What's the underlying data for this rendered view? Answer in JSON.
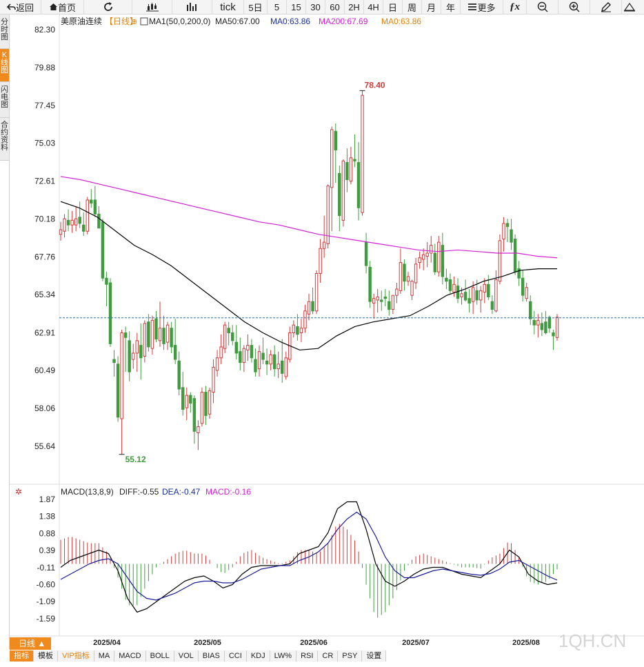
{
  "toolbar": {
    "back": "返回",
    "home": "首页",
    "tick": "tick",
    "periods": [
      "5日",
      "5",
      "15",
      "30",
      "60",
      "2H",
      "4H",
      "日",
      "周",
      "月",
      "年"
    ],
    "more": "更多"
  },
  "side_tabs": [
    "分时图",
    "K线图",
    "闪电图",
    "合约资料"
  ],
  "legend": {
    "name": "美原油连续",
    "period": "【日线】",
    "ma1": "MA1(50,0,200,0)",
    "ma50": "MA50:67.00",
    "ma": "MA0:63.86",
    "ma200": "MA200:67.69",
    "ma0": "MA0:63.86"
  },
  "macd_legend": {
    "name": "MACD(13,8,9)",
    "diff": "DIFF:-0.55",
    "dea": "DEA:-0.47",
    "macd": "MACD:-0.16"
  },
  "colors": {
    "up": "#d23a3a",
    "down": "#3e9c3e",
    "ma200": "#d020d0",
    "ma50": "#000000",
    "last": "#2a6fb0",
    "diff": "#000000",
    "dea": "#1a1a9a"
  },
  "chart_data": {
    "type": "candlestick",
    "price_axis": [
      "82.30",
      "79.88",
      "77.45",
      "75.03",
      "72.61",
      "70.18",
      "67.76",
      "65.34",
      "62.91",
      "60.49",
      "58.06",
      "55.64"
    ],
    "macd_axis": [
      "1.87",
      "1.38",
      "0.88",
      "0.39",
      "-0.11",
      "-0.60",
      "-1.09",
      "-1.59"
    ],
    "x_labels": [
      "2025/04",
      "2025/05",
      "2025/06",
      "2025/07",
      "2025/08"
    ],
    "annotations": {
      "high": "78.40",
      "low": "55.12"
    },
    "last_price": 63.86,
    "candles": [
      [
        69.2,
        70.0,
        68.8,
        69.5
      ],
      [
        69.4,
        70.5,
        69.0,
        70.2
      ],
      [
        70.1,
        70.8,
        69.4,
        69.8
      ],
      [
        69.8,
        70.7,
        69.3,
        70.1
      ],
      [
        69.8,
        71.0,
        69.4,
        70.2
      ],
      [
        70.3,
        71.3,
        69.6,
        69.9
      ],
      [
        69.8,
        70.6,
        69.1,
        69.4
      ],
      [
        69.4,
        71.6,
        69.2,
        71.4
      ],
      [
        71.4,
        72.1,
        70.9,
        71.2
      ],
      [
        71.4,
        72.3,
        70.3,
        70.5
      ],
      [
        70.5,
        71.0,
        69.8,
        69.6
      ],
      [
        70.0,
        70.2,
        66.2,
        66.4
      ],
      [
        66.4,
        66.8,
        64.6,
        66.0
      ],
      [
        66.1,
        66.4,
        62.0,
        62.2
      ],
      [
        61.2,
        61.8,
        60.1,
        61.0
      ],
      [
        60.9,
        61.4,
        57.2,
        57.5
      ],
      [
        57.4,
        63.1,
        55.12,
        62.9
      ],
      [
        62.9,
        63.3,
        60.4,
        62.6
      ],
      [
        62.4,
        63.0,
        59.8,
        60.4
      ],
      [
        61.2,
        62.2,
        60.6,
        61.6
      ],
      [
        61.6,
        62.9,
        60.4,
        62.4
      ],
      [
        62.1,
        63.5,
        59.9,
        61.3
      ],
      [
        61.4,
        63.7,
        61.0,
        63.5
      ],
      [
        63.6,
        64.1,
        61.7,
        62.0
      ],
      [
        61.9,
        64.0,
        61.5,
        63.7
      ],
      [
        63.8,
        64.3,
        62.3,
        62.5
      ],
      [
        62.4,
        64.9,
        62.0,
        63.2
      ],
      [
        63.2,
        64.0,
        61.8,
        62.2
      ],
      [
        62.3,
        63.6,
        61.8,
        63.4
      ],
      [
        63.2,
        63.6,
        61.6,
        62.0
      ],
      [
        62.1,
        63.8,
        60.9,
        61.2
      ],
      [
        61.1,
        61.7,
        58.9,
        59.3
      ],
      [
        59.4,
        60.4,
        57.6,
        58.0
      ],
      [
        58.1,
        59.4,
        57.3,
        58.9
      ],
      [
        58.9,
        59.1,
        57.8,
        58.4
      ],
      [
        58.7,
        58.9,
        55.8,
        56.6
      ],
      [
        56.5,
        57.3,
        55.4,
        56.9
      ],
      [
        57.1,
        59.4,
        56.9,
        59.1
      ],
      [
        59.1,
        59.5,
        57.0,
        57.6
      ],
      [
        57.7,
        59.4,
        57.4,
        59.2
      ],
      [
        59.1,
        61.2,
        58.4,
        60.7
      ],
      [
        60.5,
        61.8,
        60.1,
        61.3
      ],
      [
        61.3,
        62.8,
        60.9,
        62.0
      ],
      [
        61.9,
        63.6,
        61.6,
        63.4
      ],
      [
        63.2,
        63.6,
        62.1,
        62.9
      ],
      [
        62.9,
        63.4,
        62.1,
        62.4
      ],
      [
        62.3,
        63.4,
        61.2,
        61.6
      ],
      [
        61.7,
        62.6,
        60.5,
        61.0
      ],
      [
        61.0,
        62.1,
        60.4,
        61.9
      ],
      [
        61.8,
        62.8,
        61.1,
        62.1
      ],
      [
        62.1,
        62.5,
        61.0,
        61.3
      ],
      [
        61.2,
        61.9,
        60.1,
        60.4
      ],
      [
        60.6,
        62.1,
        60.1,
        61.7
      ],
      [
        61.6,
        62.6,
        60.9,
        61.2
      ],
      [
        61.1,
        61.9,
        60.2,
        60.9
      ],
      [
        60.9,
        61.8,
        60.5,
        61.5
      ],
      [
        61.5,
        62.1,
        60.1,
        60.6
      ],
      [
        60.6,
        61.7,
        60.0,
        60.9
      ],
      [
        61.1,
        62.5,
        59.7,
        60.3
      ],
      [
        60.1,
        61.7,
        59.9,
        61.3
      ],
      [
        61.2,
        63.3,
        61.0,
        62.9
      ],
      [
        62.9,
        63.7,
        62.6,
        63.4
      ],
      [
        63.3,
        64.1,
        62.4,
        62.8
      ],
      [
        62.9,
        63.8,
        62.3,
        63.2
      ],
      [
        63.2,
        64.7,
        62.9,
        64.3
      ],
      [
        64.1,
        65.4,
        63.7,
        64.9
      ],
      [
        64.9,
        65.8,
        64.1,
        64.3
      ],
      [
        64.3,
        66.9,
        64.1,
        66.7
      ],
      [
        66.7,
        68.9,
        66.1,
        68.3
      ],
      [
        68.3,
        70.4,
        67.7,
        68.7
      ],
      [
        68.6,
        72.4,
        68.3,
        72.3
      ],
      [
        72.2,
        76.1,
        69.4,
        75.9
      ],
      [
        75.8,
        76.3,
        72.5,
        74.6
      ],
      [
        73.1,
        73.6,
        69.4,
        70.4
      ],
      [
        70.1,
        74.0,
        69.7,
        73.9
      ],
      [
        73.8,
        74.7,
        71.9,
        72.7
      ],
      [
        72.6,
        74.8,
        72.4,
        74.1
      ],
      [
        74.0,
        75.6,
        73.5,
        73.9
      ],
      [
        73.8,
        75.1,
        70.1,
        70.9
      ],
      [
        70.6,
        78.4,
        70.4,
        78.1
      ],
      [
        68.7,
        69.3,
        66.7,
        67.2
      ],
      [
        67.1,
        67.5,
        64.5,
        64.9
      ],
      [
        64.8,
        65.4,
        63.8,
        65.1
      ],
      [
        65.0,
        65.7,
        64.2,
        65.2
      ],
      [
        65.0,
        65.6,
        64.3,
        64.9
      ],
      [
        65.2,
        65.7,
        64.6,
        65.1
      ],
      [
        64.9,
        65.6,
        64.0,
        64.4
      ],
      [
        64.4,
        65.3,
        64.1,
        65.3
      ],
      [
        65.3,
        66.1,
        64.8,
        65.7
      ],
      [
        65.6,
        68.3,
        65.4,
        67.4
      ],
      [
        67.3,
        67.6,
        65.6,
        66.2
      ],
      [
        66.2,
        66.8,
        65.9,
        66.5
      ],
      [
        65.3,
        66.3,
        65.0,
        66.2
      ],
      [
        66.1,
        67.7,
        65.7,
        67.3
      ],
      [
        67.4,
        68.1,
        67.0,
        67.7
      ],
      [
        67.6,
        68.3,
        66.9,
        67.9
      ],
      [
        67.8,
        68.7,
        67.1,
        68.0
      ],
      [
        68.0,
        69.1,
        67.4,
        68.5
      ],
      [
        68.0,
        68.6,
        66.6,
        66.8
      ],
      [
        66.8,
        69.1,
        66.5,
        68.7
      ],
      [
        68.5,
        69.3,
        66.0,
        66.5
      ],
      [
        66.4,
        67.0,
        65.7,
        66.2
      ],
      [
        66.3,
        66.7,
        65.4,
        65.6
      ],
      [
        65.5,
        66.5,
        65.2,
        66.0
      ],
      [
        65.9,
        66.4,
        64.8,
        65.1
      ],
      [
        65.2,
        65.8,
        64.7,
        65.4
      ],
      [
        65.5,
        66.3,
        64.9,
        65.0
      ],
      [
        65.1,
        65.7,
        64.2,
        64.8
      ],
      [
        64.9,
        66.2,
        64.1,
        65.8
      ],
      [
        65.6,
        66.3,
        64.7,
        65.0
      ],
      [
        65.0,
        65.9,
        64.2,
        65.6
      ],
      [
        65.5,
        66.4,
        64.8,
        66.0
      ],
      [
        66.0,
        66.6,
        65.0,
        65.2
      ],
      [
        64.9,
        65.3,
        64.1,
        64.4
      ],
      [
        64.3,
        66.9,
        64.2,
        66.3
      ],
      [
        66.2,
        69.2,
        66.0,
        68.8
      ],
      [
        68.9,
        70.3,
        68.1,
        69.9
      ],
      [
        69.9,
        70.2,
        68.7,
        69.7
      ],
      [
        69.5,
        70.2,
        68.2,
        68.7
      ],
      [
        68.9,
        69.2,
        66.6,
        66.8
      ],
      [
        67.0,
        67.5,
        65.9,
        66.4
      ],
      [
        66.4,
        66.9,
        64.9,
        65.3
      ],
      [
        65.1,
        66.1,
        64.9,
        65.8
      ],
      [
        64.9,
        65.3,
        63.4,
        63.8
      ],
      [
        63.7,
        64.3,
        62.8,
        63.4
      ],
      [
        63.4,
        64.1,
        62.6,
        63.7
      ],
      [
        63.5,
        64.2,
        62.7,
        63.1
      ],
      [
        63.6,
        64.3,
        62.8,
        62.9
      ],
      [
        63.9,
        64.0,
        62.9,
        63.2
      ],
      [
        62.9,
        63.1,
        61.8,
        62.7
      ],
      [
        62.6,
        64.1,
        62.4,
        63.9
      ]
    ],
    "ma200": [
      72.9,
      72.7,
      72.4,
      72.1,
      71.8,
      71.5,
      71.2,
      70.9,
      70.6,
      70.3,
      70.0,
      69.8,
      69.5,
      69.2,
      69.0,
      68.8,
      68.6,
      68.4,
      68.2,
      68.1,
      68.2,
      68.1,
      68.0,
      68.0,
      67.8,
      67.7
    ],
    "ma50": [
      71.3,
      70.9,
      70.3,
      69.4,
      68.5,
      67.9,
      67.2,
      66.3,
      65.4,
      64.5,
      63.6,
      62.9,
      62.3,
      61.8,
      61.9,
      62.7,
      63.3,
      63.6,
      63.8,
      64.0,
      64.6,
      65.3,
      65.7,
      66.2,
      66.5,
      66.9,
      67.0,
      67.0
    ],
    "macd_diff": [
      -0.1,
      0.1,
      0.2,
      0.3,
      0.4,
      0.3,
      -0.2,
      -1.0,
      -1.4,
      -1.3,
      -1.1,
      -0.9,
      -0.7,
      -0.5,
      -0.4,
      -0.35,
      -0.5,
      -0.7,
      -0.6,
      -0.3,
      -0.1,
      -0.05,
      -0.05,
      -0.05,
      0.0,
      0.3,
      0.4,
      0.5,
      0.9,
      1.6,
      1.8,
      1.8,
      1.0,
      0.0,
      -0.5,
      -0.65,
      -0.5,
      -0.3,
      -0.15,
      -0.1,
      -0.1,
      -0.2,
      -0.3,
      -0.35,
      -0.4,
      -0.2,
      0.0,
      0.4,
      0.2,
      -0.3,
      -0.5,
      -0.6,
      -0.55
    ],
    "macd_dea": [
      -0.45,
      -0.3,
      -0.15,
      0.0,
      0.1,
      0.15,
      0.0,
      -0.4,
      -0.8,
      -1.0,
      -1.05,
      -0.95,
      -0.85,
      -0.7,
      -0.55,
      -0.5,
      -0.5,
      -0.55,
      -0.55,
      -0.45,
      -0.3,
      -0.15,
      -0.1,
      -0.05,
      -0.05,
      0.1,
      0.2,
      0.35,
      0.6,
      1.0,
      1.3,
      1.5,
      1.3,
      0.8,
      0.2,
      -0.2,
      -0.4,
      -0.4,
      -0.3,
      -0.2,
      -0.15,
      -0.2,
      -0.25,
      -0.3,
      -0.33,
      -0.28,
      -0.15,
      0.05,
      0.1,
      -0.05,
      -0.2,
      -0.35,
      -0.47
    ]
  },
  "bottom_tabs": [
    "指标",
    "模板",
    "VIP指标",
    "MA",
    "MACD",
    "BOLL",
    "VOL",
    "BIAS",
    "CCI",
    "KDJ",
    "LW%",
    "RSI",
    "CR",
    "PSY",
    "设置"
  ],
  "day_tab": "日线 ▲",
  "watermark": "1QH.CN"
}
